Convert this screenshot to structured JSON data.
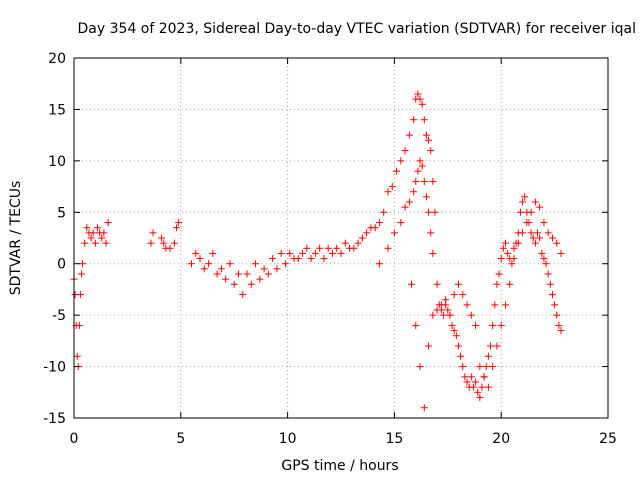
{
  "chart_data": {
    "type": "scatter",
    "title": "Day 354 of 2023, Sidereal Day-to-day VTEC variation (SDTVAR) for receiver iqal",
    "xlabel": "GPS time / hours",
    "ylabel": "SDTVAR / TECUs",
    "xlim": [
      0,
      25
    ],
    "ylim": [
      -15,
      20
    ],
    "xticks": [
      0,
      5,
      10,
      15,
      20,
      25
    ],
    "yticks": [
      -15,
      -10,
      -5,
      0,
      5,
      10,
      15,
      20
    ],
    "grid": true,
    "marker": "+",
    "color": "#ff0000",
    "series": [
      {
        "name": "SDTVAR",
        "x": [
          0.0,
          0.05,
          0.1,
          0.15,
          0.2,
          0.25,
          0.3,
          0.35,
          0.4,
          0.5,
          0.6,
          0.7,
          0.8,
          0.9,
          1.0,
          1.1,
          1.2,
          1.3,
          1.4,
          1.5,
          1.6,
          3.6,
          3.7,
          4.1,
          4.2,
          4.3,
          4.5,
          4.7,
          4.8,
          4.9,
          5.5,
          5.7,
          5.9,
          6.1,
          6.3,
          6.5,
          6.7,
          6.9,
          7.1,
          7.3,
          7.5,
          7.7,
          7.9,
          8.1,
          8.3,
          8.5,
          8.7,
          8.9,
          9.1,
          9.3,
          9.5,
          9.7,
          9.9,
          10.1,
          10.3,
          10.5,
          10.7,
          10.9,
          11.1,
          11.3,
          11.5,
          11.7,
          11.9,
          12.1,
          12.3,
          12.5,
          12.7,
          12.9,
          13.1,
          13.3,
          13.5,
          13.7,
          13.9,
          14.1,
          14.3,
          14.5,
          14.7,
          14.9,
          15.1,
          15.3,
          15.5,
          15.7,
          15.9,
          16.0,
          16.1,
          16.2,
          16.3,
          16.4,
          16.5,
          16.6,
          16.7,
          16.8,
          16.9,
          17.0,
          17.1,
          17.2,
          17.3,
          17.4,
          17.5,
          17.6,
          17.7,
          17.8,
          17.9,
          18.0,
          18.1,
          18.2,
          18.3,
          18.4,
          18.5,
          18.6,
          18.7,
          18.8,
          18.9,
          19.0,
          19.1,
          19.2,
          19.3,
          19.4,
          19.5,
          19.6,
          19.7,
          19.8,
          19.9,
          20.0,
          20.1,
          20.2,
          20.3,
          20.4,
          20.5,
          20.6,
          20.7,
          20.8,
          20.9,
          21.0,
          21.1,
          21.2,
          21.3,
          21.4,
          21.5,
          21.6,
          21.7,
          21.8,
          21.9,
          22.0,
          22.1,
          22.2,
          22.3,
          22.4,
          22.5,
          22.6,
          22.7,
          22.8,
          14.3,
          14.7,
          15.0,
          15.3,
          15.5,
          15.7,
          15.9,
          16.0,
          16.1,
          16.2,
          16.3,
          16.4,
          16.5,
          16.6,
          16.7,
          16.8,
          15.8,
          16.0,
          16.2,
          16.4,
          16.6,
          16.8,
          17.0,
          17.2,
          17.4,
          17.6,
          17.8,
          18.0,
          18.2,
          18.4,
          18.6,
          18.8,
          19.0,
          19.2,
          19.4,
          19.6,
          19.8,
          20.0,
          20.2,
          20.4,
          20.6,
          20.8,
          21.0,
          21.2,
          21.4,
          21.6,
          21.8,
          22.0,
          22.2,
          22.4,
          22.6,
          22.8
        ],
        "y": [
          -1.5,
          -3.0,
          -6.0,
          -9.0,
          -10.0,
          -6.0,
          -3.0,
          -1.0,
          0.0,
          2.0,
          3.5,
          3.0,
          2.5,
          3.0,
          2.0,
          3.5,
          3.0,
          2.5,
          3.0,
          2.0,
          4.0,
          2.0,
          3.0,
          2.5,
          2.0,
          1.5,
          1.5,
          2.0,
          3.5,
          4.0,
          0.0,
          1.0,
          0.5,
          -0.5,
          0.0,
          1.0,
          -1.0,
          -0.5,
          -1.5,
          0.0,
          -2.0,
          -1.0,
          -3.0,
          -1.0,
          -2.0,
          0.0,
          -1.5,
          -0.5,
          -1.0,
          0.5,
          -0.5,
          1.0,
          0.0,
          1.0,
          0.5,
          0.5,
          1.0,
          1.5,
          0.5,
          1.0,
          1.5,
          0.5,
          1.5,
          1.0,
          1.5,
          1.0,
          2.0,
          1.5,
          1.5,
          2.0,
          2.5,
          3.0,
          3.5,
          3.5,
          4.0,
          5.0,
          7.0,
          7.5,
          9.0,
          10.0,
          11.0,
          12.5,
          14.0,
          16.0,
          16.5,
          16.0,
          15.5,
          14.0,
          12.5,
          12.0,
          11.0,
          8.0,
          5.0,
          -2.0,
          -4.0,
          -4.5,
          -5.0,
          -4.0,
          -4.5,
          -5.0,
          -6.0,
          -6.5,
          -7.0,
          -8.0,
          -9.0,
          -10.0,
          -11.0,
          -11.5,
          -12.0,
          -11.0,
          -12.0,
          -11.5,
          -12.5,
          -13.0,
          -12.0,
          -11.0,
          -10.0,
          -9.0,
          -8.0,
          -6.0,
          -4.0,
          -2.0,
          -1.0,
          0.5,
          1.5,
          2.0,
          1.0,
          0.5,
          0.0,
          1.5,
          2.0,
          3.0,
          5.0,
          6.0,
          6.5,
          5.0,
          4.0,
          3.0,
          2.5,
          2.0,
          3.0,
          2.5,
          1.0,
          0.5,
          0.0,
          -1.0,
          -2.0,
          -3.0,
          -4.0,
          -5.0,
          -6.0,
          -6.5,
          0.0,
          1.5,
          3.0,
          4.0,
          5.5,
          6.0,
          7.0,
          8.0,
          9.0,
          10.0,
          9.5,
          8.0,
          6.5,
          5.0,
          3.0,
          1.0,
          -2.0,
          -6.0,
          -10.0,
          -14.0,
          -8.0,
          -5.0,
          -4.5,
          -4.0,
          -3.5,
          -5.0,
          -3.0,
          -2.0,
          -3.0,
          -4.0,
          -5.0,
          -6.0,
          -10.0,
          -11.0,
          -12.0,
          -10.0,
          -8.0,
          -6.0,
          -4.0,
          -2.0,
          0.5,
          2.0,
          3.0,
          4.0,
          5.0,
          6.0,
          5.5,
          4.0,
          3.0,
          2.5,
          2.0,
          1.0
        ]
      }
    ]
  }
}
